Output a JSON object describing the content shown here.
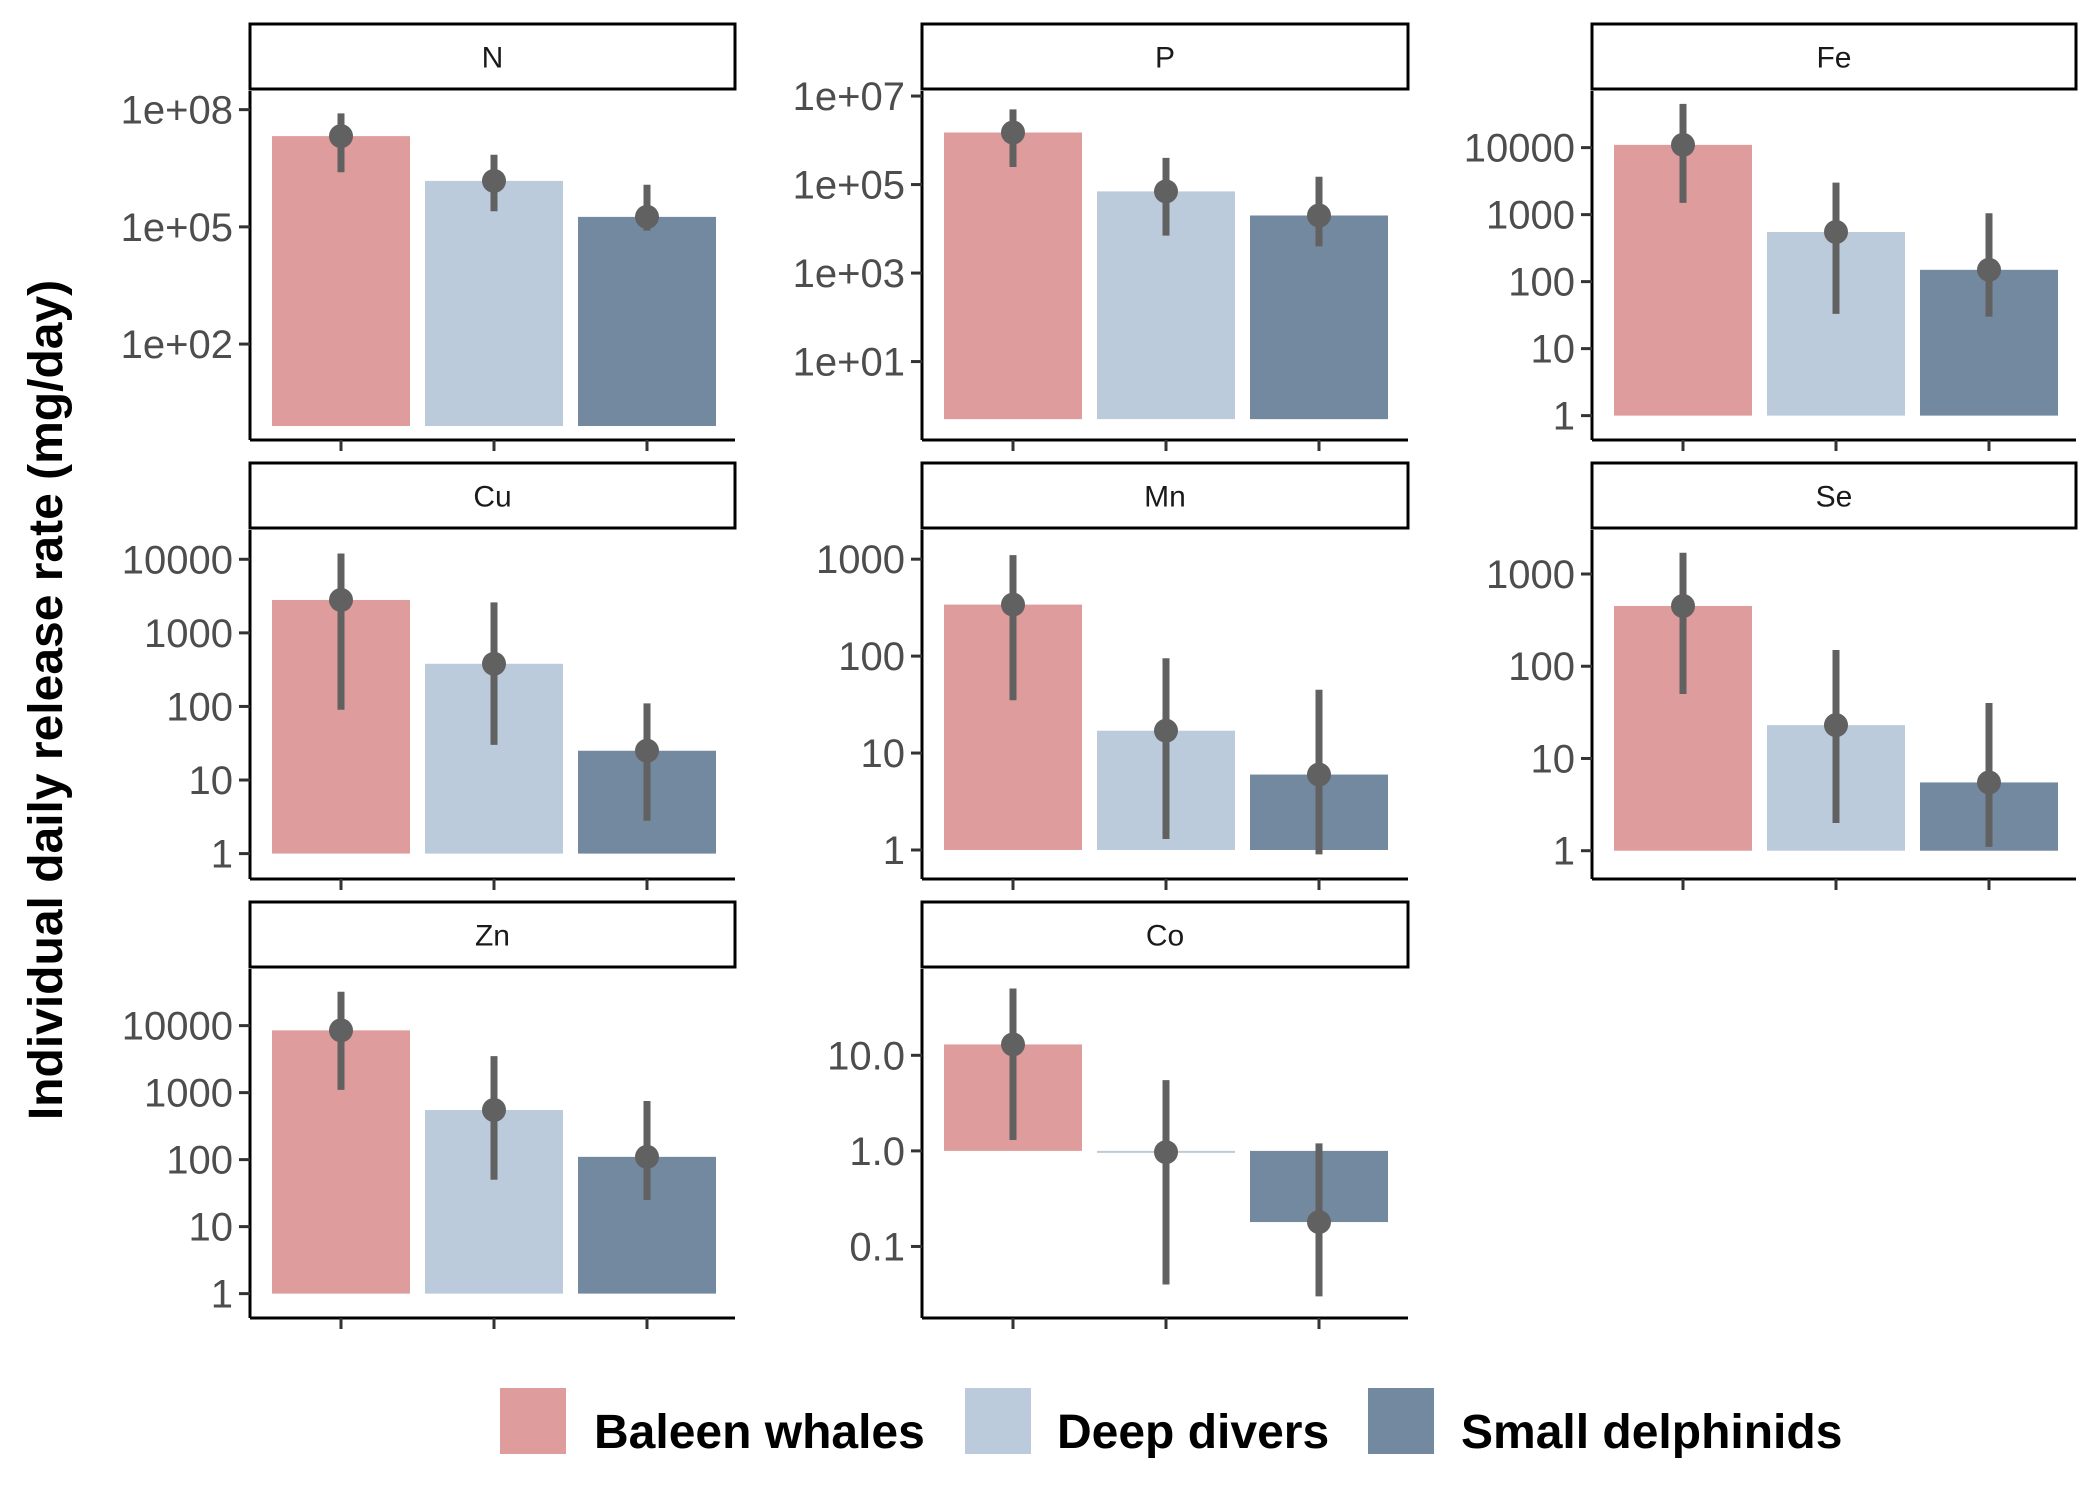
{
  "chart_data": {
    "type": "bar",
    "ylabel": "Individual daily release rate (mg/day)",
    "yscale": "log",
    "facet_layout": "3 columns x 3 rows",
    "legend_position": "bottom",
    "error_bars": true,
    "categories": [
      "Baleen whales",
      "Deep divers",
      "Small delphinids"
    ],
    "colors": {
      "Baleen whales": "#df9c9c",
      "Deep divers": "#bccbdc",
      "Small delphinids": "#73899f",
      "point": "#616161"
    },
    "panels": [
      {
        "title": "N",
        "ylim": [
          0.8,
          300000000
        ],
        "bar_base": 0.8,
        "ticks": [
          {
            "v": 100,
            "label": "1e+02"
          },
          {
            "v": 100000,
            "label": "1e+05"
          },
          {
            "v": 100000000,
            "label": "1e+08"
          }
        ],
        "values": [
          21000000,
          1500000,
          180000
        ],
        "ci_low": [
          2500000,
          250000,
          80000
        ],
        "ci_high": [
          80000000,
          7000000,
          1200000
        ]
      },
      {
        "title": "P",
        "ylim": [
          0.35,
          13000000
        ],
        "bar_base": 0.5,
        "ticks": [
          {
            "v": 10,
            "label": "1e+01"
          },
          {
            "v": 1000,
            "label": "1e+03"
          },
          {
            "v": 100000,
            "label": "1e+05"
          },
          {
            "v": 10000000,
            "label": "1e+07"
          }
        ],
        "values": [
          1500000,
          70000,
          20000
        ],
        "ci_low": [
          250000,
          7000,
          4000
        ],
        "ci_high": [
          5000000,
          400000,
          150000
        ]
      },
      {
        "title": "Fe",
        "ylim": [
          0.7,
          70000
        ],
        "bar_base": 1,
        "ticks": [
          {
            "v": 1,
            "label": "1"
          },
          {
            "v": 10,
            "label": "10"
          },
          {
            "v": 100,
            "label": "100"
          },
          {
            "v": 1000,
            "label": "1000"
          },
          {
            "v": 10000,
            "label": "10000"
          }
        ],
        "values": [
          11000,
          550,
          150
        ],
        "ci_low": [
          1500,
          33,
          30
        ],
        "ci_high": [
          45000,
          3000,
          1050
        ]
      },
      {
        "title": "Cu",
        "ylim": [
          0.7,
          25000
        ],
        "bar_base": 1,
        "ticks": [
          {
            "v": 1,
            "label": "1"
          },
          {
            "v": 10,
            "label": "10"
          },
          {
            "v": 100,
            "label": "100"
          },
          {
            "v": 1000,
            "label": "1000"
          },
          {
            "v": 10000,
            "label": "10000"
          }
        ],
        "values": [
          2800,
          380,
          25
        ],
        "ci_low": [
          90,
          30,
          2.8
        ],
        "ci_high": [
          12000,
          2600,
          110
        ]
      },
      {
        "title": "Mn",
        "ylim": [
          0.7,
          2000
        ],
        "bar_base": 1,
        "ticks": [
          {
            "v": 1,
            "label": "1"
          },
          {
            "v": 10,
            "label": "10"
          },
          {
            "v": 100,
            "label": "100"
          },
          {
            "v": 1000,
            "label": "1000"
          }
        ],
        "values": [
          340,
          17,
          6
        ],
        "ci_low": [
          35,
          1.3,
          0.9
        ],
        "ci_high": [
          1100,
          95,
          45
        ]
      },
      {
        "title": "Se",
        "ylim": [
          0.7,
          3000
        ],
        "bar_base": 1,
        "ticks": [
          {
            "v": 1,
            "label": "1"
          },
          {
            "v": 10,
            "label": "10"
          },
          {
            "v": 100,
            "label": "100"
          },
          {
            "v": 1000,
            "label": "1000"
          }
        ],
        "values": [
          450,
          23,
          5.5
        ],
        "ci_low": [
          50,
          2,
          1.1
        ],
        "ci_high": [
          1700,
          150,
          40
        ]
      },
      {
        "title": "Zn",
        "ylim": [
          0.7,
          70000
        ],
        "bar_base": 1,
        "ticks": [
          {
            "v": 1,
            "label": "1"
          },
          {
            "v": 10,
            "label": "10"
          },
          {
            "v": 100,
            "label": "100"
          },
          {
            "v": 1000,
            "label": "1000"
          },
          {
            "v": 10000,
            "label": "10000"
          }
        ],
        "values": [
          8500,
          550,
          110
        ],
        "ci_low": [
          1100,
          50,
          25
        ],
        "ci_high": [
          32000,
          3500,
          750
        ]
      },
      {
        "title": "Co",
        "ylim": [
          0.025,
          80
        ],
        "bar_base": 1,
        "tick_format": "decimal",
        "ticks": [
          {
            "v": 0.1,
            "label": "0.1"
          },
          {
            "v": 1,
            "label": "1.0"
          },
          {
            "v": 10,
            "label": "10.0"
          }
        ],
        "values": [
          13,
          0.97,
          0.18
        ],
        "ci_low": [
          1.3,
          0.04,
          0.03
        ],
        "ci_high": [
          50,
          5.5,
          1.2
        ]
      }
    ]
  }
}
